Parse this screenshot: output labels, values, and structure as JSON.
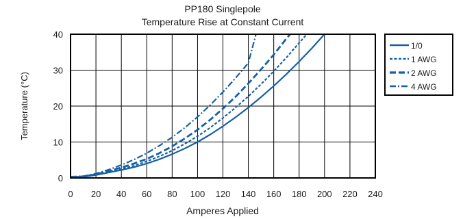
{
  "chart_data": {
    "type": "line",
    "title": "PP180 Singlepole",
    "subtitle": "Temperature Rise at Constant Current",
    "xlabel": "Amperes Applied",
    "ylabel": "Temperature (°C)",
    "xlim": [
      0,
      240
    ],
    "ylim": [
      0,
      40
    ],
    "xticks": [
      0,
      20,
      40,
      60,
      80,
      100,
      120,
      140,
      160,
      180,
      200,
      220,
      240
    ],
    "yticks": [
      0,
      10,
      20,
      30,
      40
    ],
    "grid": true,
    "legend_position": "right",
    "line_color": "#1560a6",
    "series": [
      {
        "name": "1/0",
        "style": "solid",
        "x": [
          0,
          10,
          20,
          30,
          40,
          50,
          60,
          70,
          80,
          90,
          100,
          110,
          120,
          130,
          140,
          150,
          160,
          170,
          180,
          190,
          200
        ],
        "y": [
          0.3,
          0.3,
          0.8,
          1.5,
          2.2,
          3.0,
          4.0,
          5.2,
          6.6,
          8.2,
          10.0,
          12.1,
          14.4,
          16.9,
          19.6,
          22.5,
          25.6,
          28.9,
          32.4,
          36.1,
          40.0
        ]
      },
      {
        "name": "1 AWG",
        "style": "dotted",
        "x": [
          0,
          10,
          20,
          30,
          40,
          50,
          60,
          70,
          80,
          90,
          100,
          110,
          120,
          130,
          140,
          150,
          160,
          170,
          180,
          186
        ],
        "y": [
          0.3,
          0.4,
          0.9,
          1.7,
          2.5,
          3.4,
          4.6,
          6.0,
          7.6,
          9.5,
          11.6,
          14.0,
          16.7,
          19.6,
          22.7,
          26.1,
          29.7,
          33.5,
          37.6,
          40.0
        ]
      },
      {
        "name": "2 AWG",
        "style": "dashed",
        "x": [
          0,
          10,
          20,
          30,
          40,
          50,
          60,
          70,
          80,
          90,
          100,
          110,
          120,
          130,
          140,
          150,
          160,
          170,
          173
        ],
        "y": [
          0.3,
          0.4,
          1.0,
          1.9,
          2.9,
          4.0,
          5.3,
          6.9,
          8.8,
          11.0,
          13.4,
          16.2,
          19.3,
          22.6,
          26.3,
          30.2,
          34.3,
          38.8,
          40.0
        ]
      },
      {
        "name": "4 AWG",
        "style": "dashdot",
        "x": [
          0,
          10,
          20,
          30,
          40,
          50,
          60,
          70,
          80,
          90,
          100,
          110,
          120,
          130,
          140,
          146
        ],
        "y": [
          0.3,
          0.5,
          1.2,
          2.3,
          3.6,
          5.1,
          6.9,
          9.0,
          11.3,
          14.0,
          17.0,
          20.3,
          23.9,
          27.8,
          32.0,
          40.0
        ]
      }
    ]
  }
}
